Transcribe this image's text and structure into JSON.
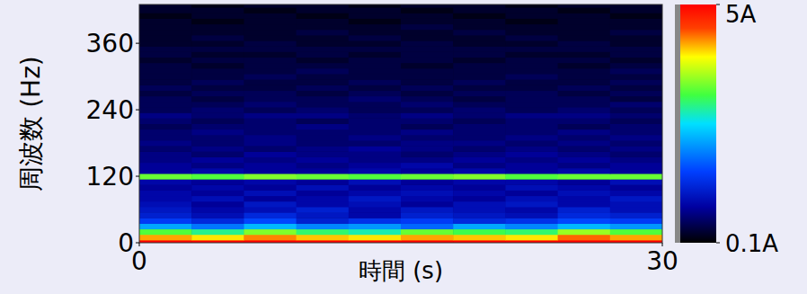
{
  "chart_data": {
    "type": "heatmap",
    "x_label": "時間 (s)",
    "y_label": "周波数 (Hz)",
    "xlim": [
      0,
      30
    ],
    "ylim": [
      0,
      430
    ],
    "xticks": [
      0,
      30
    ],
    "yticks": [
      0,
      120,
      240,
      360
    ],
    "x_edges": [
      0,
      3,
      6,
      9,
      12,
      15,
      18,
      21,
      24,
      27,
      30
    ],
    "y_edges": [
      0,
      5,
      15,
      25,
      35,
      45,
      55,
      65,
      75,
      85,
      95,
      105,
      115,
      125,
      135,
      145,
      155,
      165,
      175,
      185,
      195,
      205,
      215,
      225,
      235,
      245,
      255,
      265,
      275,
      285,
      295,
      305,
      315,
      325,
      335,
      345,
      355,
      365,
      375,
      385,
      395,
      405,
      415,
      425,
      430
    ],
    "cells": [
      [
        5,
        5,
        5,
        5,
        5,
        5,
        5,
        5,
        5,
        5
      ],
      [
        4.2,
        4.0,
        4.3,
        4.1,
        4.0,
        4.2,
        4.1,
        4.0,
        4.4,
        4.2
      ],
      [
        3.2,
        2.9,
        3.4,
        3.0,
        2.8,
        3.3,
        3.1,
        3.0,
        3.5,
        3.2
      ],
      [
        2.2,
        1.9,
        2.3,
        2.0,
        2.1,
        1.8,
        2.2,
        2.0,
        2.3,
        2.1
      ],
      [
        1.5,
        1.3,
        1.6,
        1.2,
        1.4,
        1.5,
        1.3,
        1.4,
        1.6,
        1.5
      ],
      [
        1.2,
        1.0,
        1.3,
        1.1,
        0.9,
        1.2,
        1.1,
        1.0,
        1.3,
        1.2
      ],
      [
        1.1,
        0.9,
        1.0,
        1.2,
        0.9,
        1.1,
        1.0,
        0.9,
        1.2,
        1.0
      ],
      [
        1.0,
        0.8,
        1.1,
        0.9,
        1.0,
        0.8,
        1.0,
        1.1,
        0.9,
        1.0
      ],
      [
        0.9,
        1.0,
        0.8,
        0.9,
        1.1,
        0.9,
        0.8,
        1.0,
        0.9,
        1.1
      ],
      [
        0.9,
        0.8,
        1.0,
        0.8,
        0.9,
        1.0,
        0.9,
        0.8,
        1.0,
        0.9
      ],
      [
        0.8,
        0.9,
        0.8,
        1.0,
        0.8,
        0.9,
        0.8,
        1.0,
        0.9,
        0.8
      ],
      [
        0.9,
        0.8,
        0.9,
        0.8,
        1.0,
        0.8,
        0.9,
        0.9,
        0.8,
        1.0
      ],
      [
        3.3,
        3.2,
        3.4,
        3.3,
        3.2,
        3.3,
        3.4,
        3.2,
        3.3,
        3.3
      ],
      [
        0.8,
        0.9,
        0.8,
        0.8,
        0.9,
        0.8,
        0.9,
        0.8,
        0.9,
        0.8
      ],
      [
        0.8,
        0.7,
        0.8,
        0.7,
        0.8,
        0.9,
        0.7,
        0.8,
        0.7,
        0.8
      ],
      [
        0.7,
        0.8,
        0.7,
        0.8,
        0.7,
        0.7,
        0.8,
        0.7,
        0.8,
        0.7
      ],
      [
        0.7,
        0.6,
        0.8,
        0.7,
        0.7,
        0.6,
        0.7,
        0.8,
        0.7,
        0.6
      ],
      [
        0.6,
        0.7,
        0.6,
        0.7,
        0.8,
        0.7,
        0.6,
        0.7,
        0.6,
        0.7
      ],
      [
        0.7,
        0.6,
        0.7,
        0.6,
        0.6,
        0.7,
        0.7,
        0.6,
        0.7,
        0.6
      ],
      [
        0.6,
        0.6,
        0.7,
        0.6,
        0.7,
        0.6,
        0.6,
        0.7,
        0.6,
        0.7
      ],
      [
        0.6,
        0.7,
        0.6,
        0.6,
        0.6,
        0.7,
        0.6,
        0.6,
        0.7,
        0.6
      ],
      [
        0.5,
        0.6,
        0.6,
        0.7,
        0.6,
        0.5,
        0.6,
        0.6,
        0.5,
        0.6
      ],
      [
        0.6,
        0.5,
        0.6,
        0.5,
        0.6,
        0.6,
        0.5,
        0.6,
        0.6,
        0.5
      ],
      [
        0.7,
        0.6,
        0.7,
        0.7,
        0.6,
        0.7,
        0.6,
        0.7,
        0.7,
        0.6
      ],
      [
        0.5,
        0.6,
        0.5,
        0.6,
        0.5,
        0.5,
        0.6,
        0.5,
        0.6,
        0.5
      ],
      [
        0.5,
        0.5,
        0.6,
        0.5,
        0.5,
        0.6,
        0.5,
        0.5,
        0.5,
        0.6
      ],
      [
        0.5,
        0.4,
        0.5,
        0.5,
        0.6,
        0.5,
        0.4,
        0.5,
        0.5,
        0.4
      ],
      [
        0.4,
        0.5,
        0.5,
        0.4,
        0.5,
        0.4,
        0.5,
        0.5,
        0.4,
        0.5
      ],
      [
        0.5,
        0.4,
        0.4,
        0.5,
        0.4,
        0.5,
        0.4,
        0.4,
        0.5,
        0.4
      ],
      [
        0.4,
        0.5,
        0.4,
        0.4,
        0.5,
        0.4,
        0.5,
        0.4,
        0.4,
        0.5
      ],
      [
        0.4,
        0.4,
        0.5,
        0.4,
        0.4,
        0.4,
        0.4,
        0.5,
        0.4,
        0.4
      ],
      [
        0.4,
        0.4,
        0.4,
        0.5,
        0.4,
        0.4,
        0.4,
        0.4,
        0.4,
        0.5
      ],
      [
        0.4,
        0.3,
        0.4,
        0.4,
        0.4,
        0.3,
        0.4,
        0.4,
        0.3,
        0.4
      ],
      [
        0.3,
        0.4,
        0.4,
        0.3,
        0.4,
        0.4,
        0.3,
        0.4,
        0.4,
        0.3
      ],
      [
        0.4,
        0.3,
        0.3,
        0.4,
        0.3,
        0.4,
        0.4,
        0.3,
        0.3,
        0.4
      ],
      [
        0.4,
        0.4,
        0.4,
        0.4,
        0.4,
        0.4,
        0.4,
        0.4,
        0.4,
        0.4
      ],
      [
        0.3,
        0.3,
        0.4,
        0.3,
        0.3,
        0.4,
        0.3,
        0.3,
        0.4,
        0.3
      ],
      [
        0.3,
        0.4,
        0.3,
        0.3,
        0.4,
        0.3,
        0.3,
        0.4,
        0.3,
        0.3
      ],
      [
        0.3,
        0.3,
        0.3,
        0.4,
        0.3,
        0.3,
        0.4,
        0.3,
        0.3,
        0.4
      ],
      [
        0.3,
        0.3,
        0.3,
        0.3,
        0.3,
        0.4,
        0.3,
        0.3,
        0.3,
        0.3
      ],
      [
        0.3,
        0.2,
        0.3,
        0.3,
        0.2,
        0.3,
        0.3,
        0.2,
        0.3,
        0.3
      ],
      [
        0.2,
        0.3,
        0.3,
        0.2,
        0.3,
        0.3,
        0.2,
        0.3,
        0.3,
        0.2
      ],
      [
        0.3,
        0.3,
        0.2,
        0.3,
        0.3,
        0.2,
        0.3,
        0.3,
        0.2,
        0.3
      ],
      [
        0.3,
        0.2,
        0.3,
        0.3,
        0.2,
        0.3,
        0.3,
        0.2,
        0.3,
        0.3
      ]
    ],
    "colorbar_range": [
      0.1,
      5
    ],
    "colorbar_ticks": [
      {
        "value": 0.1,
        "label": "0.1A"
      },
      {
        "value": 5,
        "label": "5A"
      }
    ]
  }
}
